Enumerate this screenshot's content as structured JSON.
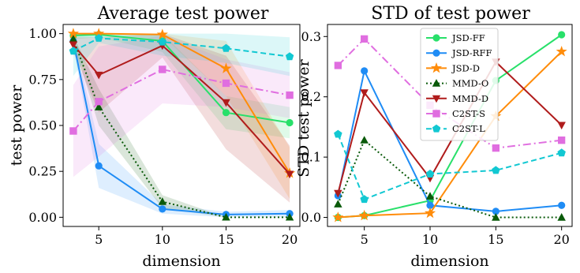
{
  "chart_data": [
    {
      "type": "line",
      "title": "Average test power",
      "xlabel": "dimension",
      "ylabel": "test power",
      "xlim": [
        2.2,
        20.8
      ],
      "ylim": [
        -0.05,
        1.05
      ],
      "xticks": [
        5,
        10,
        15,
        20
      ],
      "xtick_labels": [
        "5",
        "10",
        "15",
        "20"
      ],
      "yticks": [
        0.0,
        0.25,
        0.5,
        0.75,
        1.0
      ],
      "ytick_labels": [
        "0.00",
        "0.25",
        "0.50",
        "0.75",
        "1.00"
      ],
      "grid": false,
      "x": [
        3,
        5,
        10,
        15,
        20
      ],
      "series": [
        {
          "key": "jsd_ff",
          "values": [
            0.99,
            0.995,
            0.96,
            0.57,
            0.515
          ],
          "band": [
            [
              0.97,
              1.0
            ],
            [
              0.98,
              1.0
            ],
            [
              0.9,
              1.0
            ],
            [
              0.48,
              0.66
            ],
            [
              0.43,
              0.6
            ]
          ]
        },
        {
          "key": "jsd_rff",
          "values": [
            0.96,
            0.28,
            0.045,
            0.015,
            0.02
          ],
          "band": [
            [
              0.93,
              0.99
            ],
            [
              0.16,
              0.4
            ],
            [
              0.02,
              0.07
            ],
            [
              0.0,
              0.03
            ],
            [
              0.0,
              0.04
            ]
          ]
        },
        {
          "key": "jsd_d",
          "values": [
            1.0,
            1.0,
            0.995,
            0.81,
            0.24
          ],
          "band": [
            [
              1.0,
              1.0
            ],
            [
              1.0,
              1.0
            ],
            [
              0.99,
              1.0
            ],
            [
              0.66,
              0.96
            ],
            [
              0.1,
              0.38
            ]
          ]
        },
        {
          "key": "mmd_o",
          "values": [
            0.97,
            0.6,
            0.085,
            0.0,
            0.0
          ],
          "band": [
            [
              0.95,
              0.99
            ],
            [
              0.5,
              0.7
            ],
            [
              0.05,
              0.12
            ],
            [
              0.0,
              0.0
            ],
            [
              0.0,
              0.0
            ]
          ]
        },
        {
          "key": "mmd_d",
          "values": [
            0.94,
            0.775,
            0.935,
            0.625,
            0.235
          ],
          "band": [
            [
              0.9,
              0.98
            ],
            [
              0.57,
              0.98
            ],
            [
              0.87,
              1.0
            ],
            [
              0.37,
              0.88
            ],
            [
              0.08,
              0.39
            ]
          ]
        },
        {
          "key": "c2st_s",
          "values": [
            0.47,
            0.63,
            0.805,
            0.73,
            0.665
          ],
          "band": [
            [
              0.22,
              0.72
            ],
            [
              0.33,
              0.93
            ],
            [
              0.62,
              0.99
            ],
            [
              0.6,
              0.86
            ],
            [
              0.54,
              0.79
            ]
          ]
        },
        {
          "key": "c2st_l",
          "values": [
            0.905,
            0.975,
            0.955,
            0.92,
            0.875
          ],
          "band": [
            [
              0.77,
              1.0
            ],
            [
              0.95,
              1.0
            ],
            [
              0.88,
              1.0
            ],
            [
              0.84,
              1.0
            ],
            [
              0.77,
              0.98
            ]
          ]
        }
      ]
    },
    {
      "type": "line",
      "title": "STD of test power",
      "xlabel": "dimension",
      "ylabel": "STD test power",
      "xlim": [
        2.2,
        20.8
      ],
      "ylim": [
        -0.015,
        0.32
      ],
      "xticks": [
        5,
        10,
        15,
        20
      ],
      "xtick_labels": [
        "5",
        "10",
        "15",
        "20"
      ],
      "yticks": [
        0.0,
        0.1,
        0.2,
        0.3
      ],
      "ytick_labels": [
        "0.0",
        "0.1",
        "0.2",
        "0.3"
      ],
      "grid": false,
      "legend_position": "top-right",
      "x": [
        3,
        5,
        10,
        15,
        20
      ],
      "series": [
        {
          "key": "jsd_ff",
          "name": "JSD-FF",
          "values": [
            0.0,
            0.003,
            0.028,
            0.227,
            0.303
          ]
        },
        {
          "key": "jsd_rff",
          "name": "JSD-RFF",
          "values": [
            0.036,
            0.243,
            0.02,
            0.01,
            0.02
          ]
        },
        {
          "key": "jsd_d",
          "name": "JSD-D",
          "values": [
            0.0,
            0.003,
            0.007,
            0.168,
            0.275
          ]
        },
        {
          "key": "mmd_o",
          "name": "MMD-O",
          "values": [
            0.022,
            0.128,
            0.035,
            0.0,
            0.0
          ]
        },
        {
          "key": "mmd_d",
          "name": "MMD-D",
          "values": [
            0.04,
            0.207,
            0.065,
            0.258,
            0.153
          ]
        },
        {
          "key": "c2st_s",
          "name": "C2ST-S",
          "values": [
            0.252,
            0.296,
            0.186,
            0.115,
            0.128
          ]
        },
        {
          "key": "c2st_l",
          "name": "C2ST-L",
          "values": [
            0.138,
            0.03,
            0.072,
            0.078,
            0.107
          ]
        }
      ]
    }
  ],
  "series_styles": {
    "jsd_ff": {
      "color": "#28e06a",
      "dash": "",
      "marker": "circle"
    },
    "jsd_rff": {
      "color": "#1f8cf5",
      "dash": "",
      "marker": "circle"
    },
    "jsd_d": {
      "color": "#ff8c0a",
      "dash": "",
      "marker": "star"
    },
    "mmd_o": {
      "color": "#0a5a0a",
      "dash": "2 3",
      "marker": "triangle-up"
    },
    "mmd_d": {
      "color": "#b01c1c",
      "dash": "",
      "marker": "triangle-down"
    },
    "c2st_s": {
      "color": "#e06ee0",
      "dash": "10 4 2 4",
      "marker": "square"
    },
    "c2st_l": {
      "color": "#12c8d2",
      "dash": "7 4",
      "marker": "pentagon"
    }
  }
}
